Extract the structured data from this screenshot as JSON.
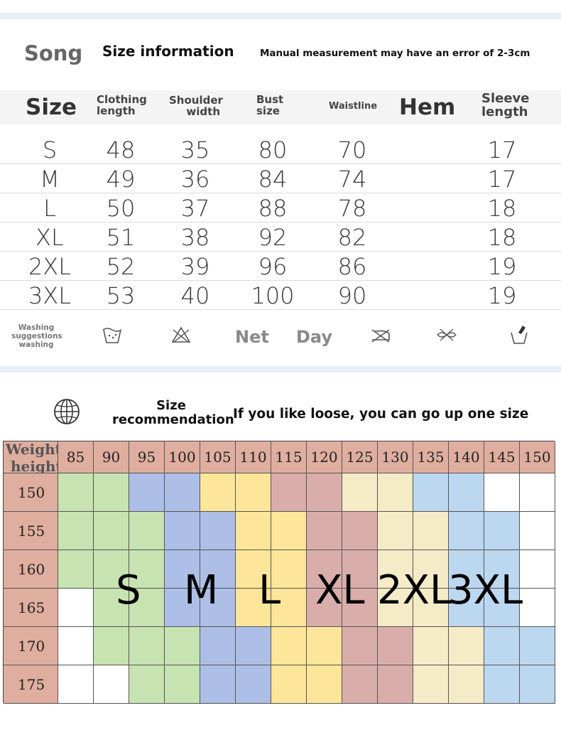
{
  "header": {
    "brand": "Song",
    "title": "Size information",
    "note": "Manual measurement may have an error of 2-3cm"
  },
  "size_table": {
    "headers": {
      "size": "Size",
      "clothing_length": [
        "Clothing",
        "length"
      ],
      "shoulder_width": [
        "Shoulder",
        "width"
      ],
      "bust_size": [
        "Bust",
        "size"
      ],
      "waistline": "Waistline",
      "hem": "Hem",
      "sleeve_length": [
        "Sleeve",
        "length"
      ]
    },
    "rows": [
      {
        "size": "S",
        "clothing_length": "48",
        "shoulder_width": "35",
        "bust": "80",
        "waist": "70",
        "hem": "",
        "sleeve": "17"
      },
      {
        "size": "M",
        "clothing_length": "49",
        "shoulder_width": "36",
        "bust": "84",
        "waist": "74",
        "hem": "",
        "sleeve": "17"
      },
      {
        "size": "L",
        "clothing_length": "50",
        "shoulder_width": "37",
        "bust": "88",
        "waist": "78",
        "hem": "",
        "sleeve": "18"
      },
      {
        "size": "XL",
        "clothing_length": "51",
        "shoulder_width": "38",
        "bust": "92",
        "waist": "82",
        "hem": "",
        "sleeve": "18"
      },
      {
        "size": "2XL",
        "clothing_length": "52",
        "shoulder_width": "39",
        "bust": "96",
        "waist": "86",
        "hem": "",
        "sleeve": "19"
      },
      {
        "size": "3XL",
        "clothing_length": "53",
        "shoulder_width": "40",
        "bust": "100",
        "waist": "90",
        "hem": "",
        "sleeve": "19"
      }
    ]
  },
  "washing": {
    "label": [
      "Washing",
      "suggestions",
      "washing"
    ],
    "words": [
      "Net",
      "Day"
    ],
    "icons": [
      "hand-wash-icon",
      "no-bleach-icon",
      "iron-icon",
      "no-wring-icon",
      "dry-clean-icon"
    ]
  },
  "recommendation": {
    "title": [
      "Size",
      "recommendation"
    ],
    "note": "If you like loose, you can go up one size",
    "corner": [
      "Weight",
      "height"
    ],
    "weights": [
      "85",
      "90",
      "95",
      "100",
      "105",
      "110",
      "115",
      "120",
      "125",
      "130",
      "135",
      "140",
      "145",
      "150"
    ],
    "heights": [
      "150",
      "155",
      "160",
      "165",
      "170",
      "175"
    ],
    "size_labels": [
      "S",
      "M",
      "L",
      "XL",
      "2XL",
      "3XL"
    ],
    "colors": {
      "header": "#dfae9f",
      "none": "#ffffff",
      "S": "#c7e3b1",
      "M": "#adbfe6",
      "L": "#fde69a",
      "XL": "#d9aeaa",
      "2XL": "#f6ebc7",
      "3XL": "#bcd7f0"
    },
    "grid": [
      [
        "S",
        "S",
        "M",
        "M",
        "L",
        "L",
        "XL",
        "XL",
        "2XL",
        "2XL",
        "3XL",
        "3XL",
        "none",
        "none"
      ],
      [
        "S",
        "S",
        "S",
        "M",
        "M",
        "L",
        "L",
        "XL",
        "XL",
        "2XL",
        "2XL",
        "3XL",
        "3XL",
        "none"
      ],
      [
        "S",
        "S",
        "S",
        "M",
        "M",
        "L",
        "L",
        "XL",
        "XL",
        "2XL",
        "2XL",
        "3XL",
        "3XL",
        "none"
      ],
      [
        "none",
        "S",
        "S",
        "M",
        "M",
        "L",
        "L",
        "XL",
        "XL",
        "2XL",
        "2XL",
        "3XL",
        "3XL",
        "none"
      ],
      [
        "none",
        "S",
        "S",
        "S",
        "M",
        "M",
        "L",
        "L",
        "XL",
        "XL",
        "2XL",
        "2XL",
        "3XL",
        "3XL"
      ],
      [
        "none",
        "none",
        "S",
        "S",
        "M",
        "M",
        "L",
        "L",
        "XL",
        "XL",
        "2XL",
        "2XL",
        "3XL",
        "3XL"
      ]
    ]
  }
}
